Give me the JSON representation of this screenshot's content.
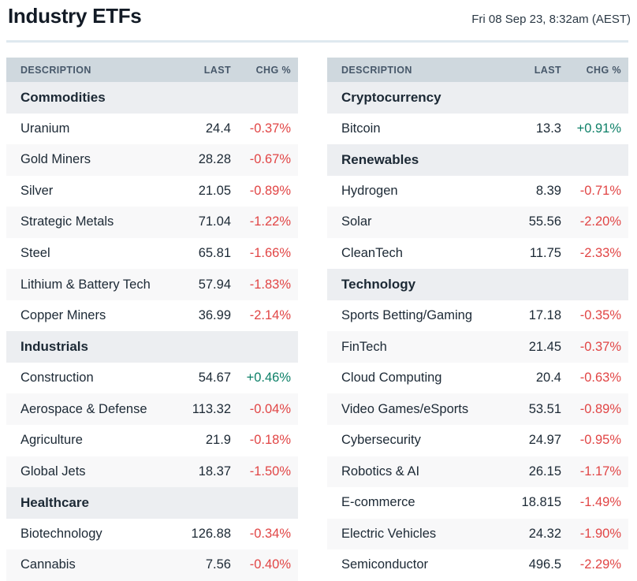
{
  "header": {
    "title": "Industry ETFs",
    "timestamp": "Fri 08 Sep 23, 8:32am (AEST)"
  },
  "columns": {
    "description": "DESCRIPTION",
    "last": "LAST",
    "chg": "CHG %"
  },
  "colors": {
    "positive": "#0e8068",
    "negative": "#e14545",
    "table_header_bg": "#cfd8de",
    "section_bg": "#eceef1",
    "stripe_bg": "#f8f8f9",
    "divider": "#dfe9ef",
    "text_dark": "#1c2935"
  },
  "tables": [
    {
      "id": "left",
      "sections": [
        {
          "name": "Commodities",
          "rows": [
            {
              "name": "Uranium",
              "last": "24.4",
              "chg": "-0.37%"
            },
            {
              "name": "Gold Miners",
              "last": "28.28",
              "chg": "-0.67%"
            },
            {
              "name": "Silver",
              "last": "21.05",
              "chg": "-0.89%"
            },
            {
              "name": "Strategic Metals",
              "last": "71.04",
              "chg": "-1.22%"
            },
            {
              "name": "Steel",
              "last": "65.81",
              "chg": "-1.66%"
            },
            {
              "name": "Lithium & Battery Tech",
              "last": "57.94",
              "chg": "-1.83%"
            },
            {
              "name": "Copper Miners",
              "last": "36.99",
              "chg": "-2.14%"
            }
          ]
        },
        {
          "name": "Industrials",
          "rows": [
            {
              "name": "Construction",
              "last": "54.67",
              "chg": "+0.46%"
            },
            {
              "name": "Aerospace & Defense",
              "last": "113.32",
              "chg": "-0.04%"
            },
            {
              "name": "Agriculture",
              "last": "21.9",
              "chg": "-0.18%"
            },
            {
              "name": "Global Jets",
              "last": "18.37",
              "chg": "-1.50%"
            }
          ]
        },
        {
          "name": "Healthcare",
          "rows": [
            {
              "name": "Biotechnology",
              "last": "126.88",
              "chg": "-0.34%"
            },
            {
              "name": "Cannabis",
              "last": "7.56",
              "chg": "-0.40%"
            }
          ]
        }
      ]
    },
    {
      "id": "right",
      "sections": [
        {
          "name": "Cryptocurrency",
          "rows": [
            {
              "name": "Bitcoin",
              "last": "13.3",
              "chg": "+0.91%"
            }
          ]
        },
        {
          "name": "Renewables",
          "rows": [
            {
              "name": "Hydrogen",
              "last": "8.39",
              "chg": "-0.71%"
            },
            {
              "name": "Solar",
              "last": "55.56",
              "chg": "-2.20%"
            },
            {
              "name": "CleanTech",
              "last": "11.75",
              "chg": "-2.33%"
            }
          ]
        },
        {
          "name": "Technology",
          "rows": [
            {
              "name": "Sports Betting/Gaming",
              "last": "17.18",
              "chg": "-0.35%"
            },
            {
              "name": "FinTech",
              "last": "21.45",
              "chg": "-0.37%"
            },
            {
              "name": "Cloud Computing",
              "last": "20.4",
              "chg": "-0.63%"
            },
            {
              "name": "Video Games/eSports",
              "last": "53.51",
              "chg": "-0.89%"
            },
            {
              "name": "Cybersecurity",
              "last": "24.97",
              "chg": "-0.95%"
            },
            {
              "name": "Robotics & AI",
              "last": "26.15",
              "chg": "-1.17%"
            },
            {
              "name": "E-commerce",
              "last": "18.815",
              "chg": "-1.49%"
            },
            {
              "name": "Electric Vehicles",
              "last": "24.32",
              "chg": "-1.90%"
            },
            {
              "name": "Semiconductor",
              "last": "496.5",
              "chg": "-2.29%"
            }
          ]
        }
      ]
    }
  ]
}
